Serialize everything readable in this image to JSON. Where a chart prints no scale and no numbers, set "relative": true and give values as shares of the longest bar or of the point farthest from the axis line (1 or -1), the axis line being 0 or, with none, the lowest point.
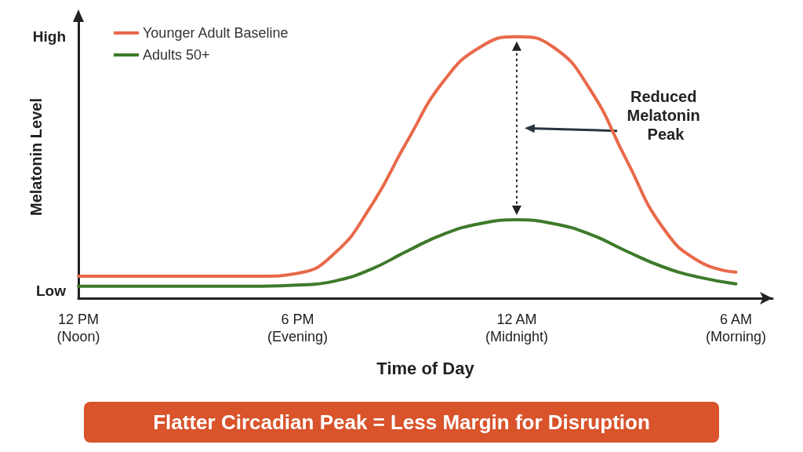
{
  "chart_data": {
    "type": "line",
    "xlabel": "Time of Day",
    "ylabel": "Melatonin Level",
    "relative": true,
    "categories": [
      "12 PM\n(Noon)",
      null,
      null,
      null,
      null,
      null,
      "6 PM\n(Evening)",
      null,
      null,
      null,
      null,
      null,
      "12 AM\n(Midnight)",
      null,
      null,
      null,
      null,
      null,
      "6 AM\n(Morning)",
      null
    ],
    "legend": "top left",
    "marker": "none",
    "line_style": "solid",
    "series": [
      {
        "name": "Younger Adult Baseline",
        "color": "#e8694a",
        "values": [
          0.084,
          0.084,
          0.084,
          0.084,
          0.084,
          0.084,
          0.095,
          0.17,
          0.35,
          0.6,
          0.83,
          0.96,
          1.0,
          0.96,
          0.8,
          0.53,
          0.27,
          0.14,
          0.1,
          null
        ]
      },
      {
        "name": "Adults 50+",
        "color": "#3d7a2a",
        "values": [
          0.046,
          0.046,
          0.046,
          0.046,
          0.046,
          0.046,
          0.05,
          0.065,
          0.11,
          0.18,
          0.245,
          0.285,
          0.3,
          0.285,
          0.245,
          0.18,
          0.12,
          0.08,
          0.055,
          null
        ]
      }
    ],
    "annotations": [
      "High",
      "Low",
      "Reduced Melatonin Peak",
      "Flatter Circadian Peak = Less Margin for Disruption"
    ]
  }
}
